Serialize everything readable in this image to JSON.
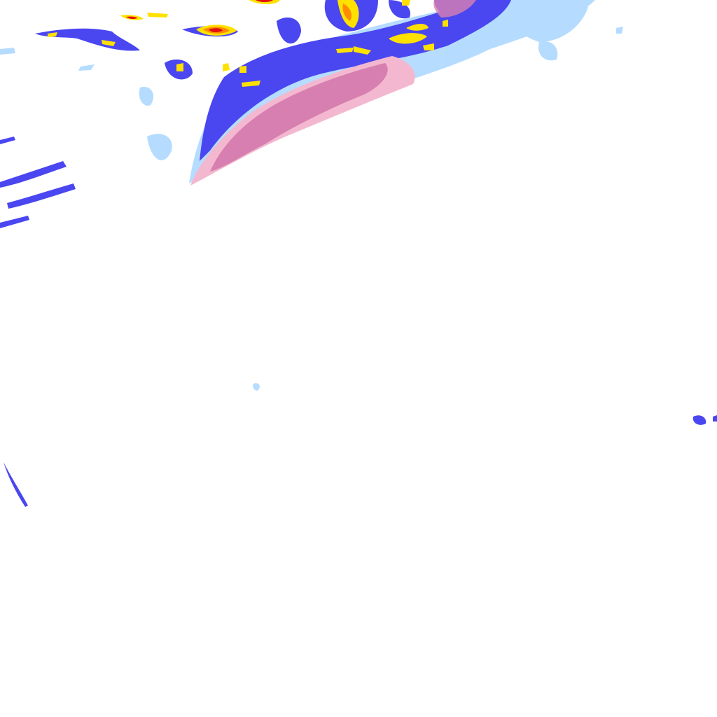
{
  "map": {
    "kind": "precipitation radar tile",
    "background": "#ffffff",
    "colors": {
      "light": "#a9d6ff",
      "moderate": "#4a46f0",
      "mixed_light": "#f3b8cf",
      "mixed": "#d77fb0",
      "heavy": "#ffe100",
      "very_heavy": "#ff8c00",
      "intense": "#e01010"
    }
  }
}
